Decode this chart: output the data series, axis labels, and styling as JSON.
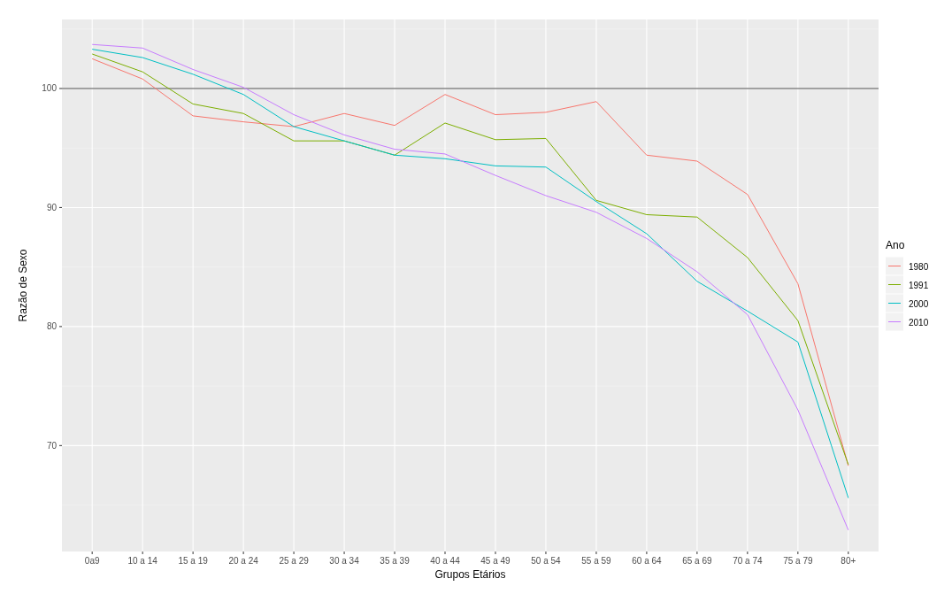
{
  "chart_data": {
    "type": "line",
    "xlabel": "Grupos Etários",
    "ylabel": "Razão de Sexo",
    "legend_title": "Ano",
    "legend": "right",
    "grid": true,
    "categories": [
      "0a9",
      "10 a 14",
      "15 a 19",
      "20 a 24",
      "25 a 29",
      "30 a 34",
      "35 a 39",
      "40 a 44",
      "45 a 49",
      "50 a 54",
      "55 a 59",
      "60 a 64",
      "65 a 69",
      "70 a 74",
      "75 a 79",
      "80+"
    ],
    "ylim": [
      61.1,
      105.8
    ],
    "yticks": [
      70,
      80,
      90,
      100
    ],
    "ref_lines": [
      {
        "axis": "y",
        "value": 100,
        "color": "#4d4d4d"
      }
    ],
    "series": [
      {
        "name": "1980",
        "color": "#f8766d",
        "values": [
          102.5,
          100.8,
          97.7,
          97.2,
          96.8,
          97.9,
          96.9,
          99.5,
          97.8,
          98.0,
          98.9,
          94.4,
          93.9,
          91.1,
          83.6,
          68.3
        ]
      },
      {
        "name": "1991",
        "color": "#7cae00",
        "values": [
          102.9,
          101.4,
          98.7,
          97.9,
          95.6,
          95.6,
          94.4,
          97.1,
          95.7,
          95.8,
          90.6,
          89.4,
          89.2,
          85.8,
          80.5,
          68.4
        ]
      },
      {
        "name": "2000",
        "color": "#00bfc4",
        "values": [
          103.3,
          102.6,
          101.2,
          99.5,
          96.8,
          95.6,
          94.4,
          94.1,
          93.5,
          93.4,
          90.5,
          87.8,
          83.8,
          81.3,
          78.7,
          65.6
        ]
      },
      {
        "name": "2010",
        "color": "#c77cff",
        "values": [
          103.7,
          103.4,
          101.6,
          100.1,
          97.8,
          96.1,
          94.9,
          94.5,
          92.7,
          91.0,
          89.6,
          87.4,
          84.6,
          81.0,
          73.0,
          62.9
        ]
      }
    ]
  }
}
